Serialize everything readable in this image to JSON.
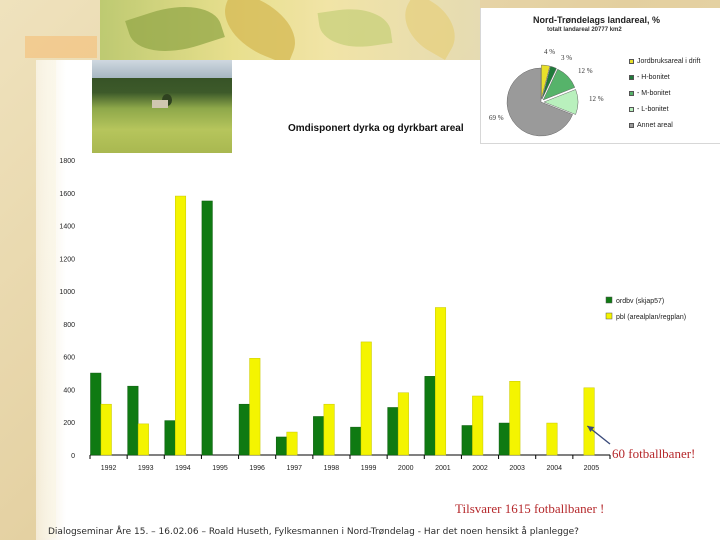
{
  "colors": {
    "dark_green": "#0f7a12",
    "yellow": "#f4f400",
    "annotation_red": "#b5282b"
  },
  "chart_data": [
    {
      "type": "bar",
      "title": "Omdisponert dyrka og dyrkbart areal",
      "categories": [
        "1992",
        "1993",
        "1994",
        "1995",
        "1996",
        "1997",
        "1998",
        "1999",
        "2000",
        "2001",
        "2002",
        "2003",
        "2004",
        "2005"
      ],
      "series": [
        {
          "name": "ordbv (skjap57)",
          "color": "#0f7a12",
          "values": [
            500,
            420,
            210,
            1550,
            310,
            110,
            235,
            170,
            290,
            480,
            180,
            195,
            0,
            0
          ]
        },
        {
          "name": "pbl (arealplan/regplan)",
          "color": "#f4f400",
          "values": [
            310,
            190,
            1580,
            0,
            590,
            140,
            310,
            690,
            380,
            900,
            360,
            450,
            195,
            410
          ]
        }
      ],
      "ylim": [
        0,
        1800
      ],
      "yticks": [
        0,
        200,
        400,
        600,
        800,
        1000,
        1200,
        1400,
        1600,
        1800
      ],
      "xlabel": "",
      "ylabel": "",
      "grid": false,
      "legend": "right"
    },
    {
      "type": "pie",
      "title": "Nord-Trøndelags landareal, %",
      "subtitle": "totalt landareal 20777 km2",
      "slices": [
        {
          "label": "Jordbruksareal i drift",
          "value": 4,
          "pct_label": "4 %",
          "color": "#e8e02a"
        },
        {
          "label": "- H-bonitet",
          "value": 3,
          "pct_label": "3 %",
          "color": "#1f7a3a"
        },
        {
          "label": "- M-bonitet",
          "value": 12,
          "pct_label": "12 %",
          "color": "#56b36a"
        },
        {
          "label": "- L-bonitet",
          "value": 12,
          "pct_label": "12 %",
          "color": "#b9f0bd"
        },
        {
          "label": "Annet areal",
          "value": 69,
          "pct_label": "69 %",
          "color": "#9a9a9a"
        }
      ]
    }
  ],
  "annotation": "60 fotballbaner!",
  "subtitle_note": "Tilsvarer 1615 fotballbaner !",
  "footer": "Dialogseminar Åre 15. – 16.02.06 – Roald Huseth, Fylkesmannen i Nord-Trøndelag - Har det noen hensikt å planlegge?"
}
